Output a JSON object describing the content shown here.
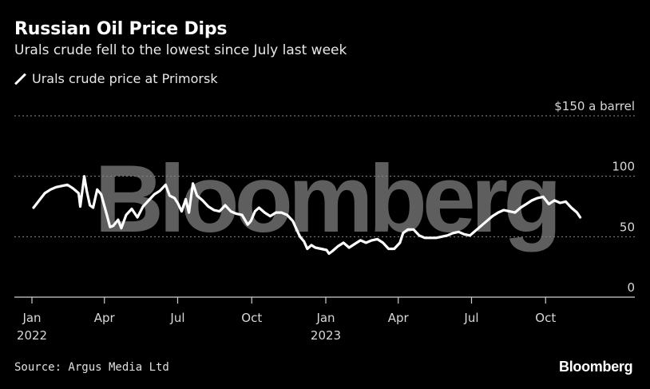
{
  "header": {
    "title": "Russian Oil Price Dips",
    "subtitle": "Urals crude fell to the lowest since July last week",
    "legend_label": "Urals crude price at Primorsk"
  },
  "footer": {
    "source": "Source: Argus Media Ltd",
    "logo": "Bloomberg"
  },
  "watermark": "Bloomberg",
  "colors": {
    "background": "#000000",
    "line": "#ffffff",
    "grid": "#8a8a8a",
    "watermark": "#5e5e5e"
  },
  "chart_data": {
    "type": "line",
    "title": "Russian Oil Price Dips",
    "subtitle": "Urals crude fell to the lowest since July last week",
    "xlabel": "",
    "ylabel": "",
    "ylim": [
      0,
      150
    ],
    "xlim": [
      "2022-01-01",
      "2023-11-30"
    ],
    "y_ticks": [
      {
        "value": 150,
        "label": "$150 a barrel"
      },
      {
        "value": 100,
        "label": "100"
      },
      {
        "value": 50,
        "label": "50"
      },
      {
        "value": 0,
        "label": "0"
      }
    ],
    "x_ticks": [
      {
        "date": "2022-01-01",
        "label": "Jan",
        "year": "2022"
      },
      {
        "date": "2022-04-01",
        "label": "Apr",
        "year": ""
      },
      {
        "date": "2022-07-01",
        "label": "Jul",
        "year": ""
      },
      {
        "date": "2022-10-01",
        "label": "Oct",
        "year": ""
      },
      {
        "date": "2023-01-01",
        "label": "Jan",
        "year": "2023"
      },
      {
        "date": "2023-04-01",
        "label": "Apr",
        "year": ""
      },
      {
        "date": "2023-07-01",
        "label": "Jul",
        "year": ""
      },
      {
        "date": "2023-10-01",
        "label": "Oct",
        "year": ""
      }
    ],
    "grid": "horizontal dotted",
    "legend_position": "top-left",
    "series": [
      {
        "name": "Urals crude price at Primorsk",
        "color": "#ffffff",
        "points": [
          [
            "2022-01-03",
            74
          ],
          [
            "2022-01-10",
            80
          ],
          [
            "2022-01-17",
            86
          ],
          [
            "2022-01-24",
            89
          ],
          [
            "2022-01-31",
            91
          ],
          [
            "2022-02-07",
            92
          ],
          [
            "2022-02-14",
            93
          ],
          [
            "2022-02-21",
            90
          ],
          [
            "2022-02-28",
            86
          ],
          [
            "2022-03-02",
            75
          ],
          [
            "2022-03-07",
            100
          ],
          [
            "2022-03-10",
            88
          ],
          [
            "2022-03-14",
            76
          ],
          [
            "2022-03-18",
            74
          ],
          [
            "2022-03-23",
            89
          ],
          [
            "2022-03-28",
            85
          ],
          [
            "2022-04-04",
            68
          ],
          [
            "2022-04-08",
            58
          ],
          [
            "2022-04-12",
            59
          ],
          [
            "2022-04-18",
            64
          ],
          [
            "2022-04-22",
            57
          ],
          [
            "2022-04-28",
            68
          ],
          [
            "2022-05-05",
            73
          ],
          [
            "2022-05-12",
            66
          ],
          [
            "2022-05-19",
            75
          ],
          [
            "2022-05-26",
            80
          ],
          [
            "2022-06-02",
            85
          ],
          [
            "2022-06-09",
            88
          ],
          [
            "2022-06-16",
            93
          ],
          [
            "2022-06-21",
            84
          ],
          [
            "2022-06-27",
            82
          ],
          [
            "2022-07-01",
            78
          ],
          [
            "2022-07-06",
            71
          ],
          [
            "2022-07-11",
            81
          ],
          [
            "2022-07-15",
            70
          ],
          [
            "2022-07-20",
            94
          ],
          [
            "2022-07-25",
            84
          ],
          [
            "2022-08-01",
            80
          ],
          [
            "2022-08-08",
            75
          ],
          [
            "2022-08-15",
            72
          ],
          [
            "2022-08-22",
            71
          ],
          [
            "2022-08-29",
            76
          ],
          [
            "2022-09-05",
            71
          ],
          [
            "2022-09-12",
            69
          ],
          [
            "2022-09-19",
            68
          ],
          [
            "2022-09-26",
            60
          ],
          [
            "2022-09-30",
            63
          ],
          [
            "2022-10-05",
            71
          ],
          [
            "2022-10-10",
            74
          ],
          [
            "2022-10-17",
            70
          ],
          [
            "2022-10-24",
            67
          ],
          [
            "2022-10-31",
            70
          ],
          [
            "2022-11-07",
            70
          ],
          [
            "2022-11-14",
            68
          ],
          [
            "2022-11-21",
            63
          ],
          [
            "2022-11-25",
            57
          ],
          [
            "2022-11-30",
            50
          ],
          [
            "2022-12-05",
            46
          ],
          [
            "2022-12-09",
            40
          ],
          [
            "2022-12-14",
            43
          ],
          [
            "2022-12-19",
            41
          ],
          [
            "2022-12-26",
            40
          ],
          [
            "2023-01-02",
            39
          ],
          [
            "2023-01-05",
            36
          ],
          [
            "2023-01-09",
            38
          ],
          [
            "2023-01-16",
            42
          ],
          [
            "2023-01-23",
            45
          ],
          [
            "2023-01-30",
            41
          ],
          [
            "2023-02-06",
            44
          ],
          [
            "2023-02-13",
            47
          ],
          [
            "2023-02-20",
            45
          ],
          [
            "2023-02-27",
            47
          ],
          [
            "2023-03-06",
            48
          ],
          [
            "2023-03-13",
            45
          ],
          [
            "2023-03-20",
            40
          ],
          [
            "2023-03-27",
            40
          ],
          [
            "2023-04-03",
            45
          ],
          [
            "2023-04-07",
            53
          ],
          [
            "2023-04-13",
            56
          ],
          [
            "2023-04-20",
            56
          ],
          [
            "2023-04-27",
            51
          ],
          [
            "2023-05-04",
            49
          ],
          [
            "2023-05-11",
            49
          ],
          [
            "2023-05-18",
            49
          ],
          [
            "2023-05-25",
            50
          ],
          [
            "2023-06-01",
            51
          ],
          [
            "2023-06-08",
            53
          ],
          [
            "2023-06-15",
            54
          ],
          [
            "2023-06-22",
            52
          ],
          [
            "2023-06-29",
            51
          ],
          [
            "2023-07-06",
            55
          ],
          [
            "2023-07-13",
            59
          ],
          [
            "2023-07-20",
            63
          ],
          [
            "2023-07-27",
            67
          ],
          [
            "2023-08-03",
            70
          ],
          [
            "2023-08-10",
            72
          ],
          [
            "2023-08-17",
            71
          ],
          [
            "2023-08-24",
            70
          ],
          [
            "2023-08-31",
            74
          ],
          [
            "2023-09-07",
            77
          ],
          [
            "2023-09-14",
            80
          ],
          [
            "2023-09-21",
            82
          ],
          [
            "2023-09-28",
            83
          ],
          [
            "2023-10-05",
            77
          ],
          [
            "2023-10-12",
            80
          ],
          [
            "2023-10-19",
            78
          ],
          [
            "2023-10-26",
            79
          ],
          [
            "2023-11-02",
            74
          ],
          [
            "2023-11-09",
            70
          ],
          [
            "2023-11-13",
            66
          ]
        ]
      }
    ]
  }
}
